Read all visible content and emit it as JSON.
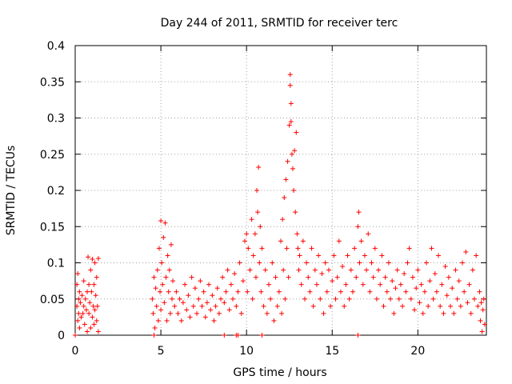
{
  "chart_data": {
    "type": "scatter",
    "title": "Day 244 of 2011, SRMTID for receiver terc",
    "xlabel": "GPS time / hours",
    "ylabel": "SRMTID / TECUs",
    "xlim": [
      0,
      24
    ],
    "ylim": [
      0,
      0.4
    ],
    "xticks": [
      0,
      5,
      10,
      15,
      20
    ],
    "yticks": [
      0,
      0.05,
      0.1,
      0.15,
      0.2,
      0.25,
      0.3,
      0.35,
      0.4
    ],
    "xtick_labels": [
      "0",
      "5",
      "10",
      "15",
      "20"
    ],
    "ytick_labels": [
      "0",
      "0.05",
      "0.1",
      "0.15",
      "0.2",
      "0.25",
      "0.3",
      "0.35",
      "0.4"
    ],
    "grid": true,
    "legend": "none",
    "marker": "+",
    "color": "#ff0000",
    "points": [
      [
        0.1,
        0.07
      ],
      [
        0.1,
        0.04
      ],
      [
        0.15,
        0.085
      ],
      [
        0.15,
        0.02
      ],
      [
        0.2,
        0.05
      ],
      [
        0.2,
        0.03
      ],
      [
        0.25,
        0.06
      ],
      [
        0.25,
        0.01
      ],
      [
        0.3,
        0.045
      ],
      [
        0.35,
        0.025
      ],
      [
        0.4,
        0.055
      ],
      [
        0.45,
        0.03
      ],
      [
        0.5,
        0.04
      ],
      [
        0.5,
        0.075
      ],
      [
        0.55,
        0.015
      ],
      [
        0.6,
        0.05
      ],
      [
        0.65,
        0.035
      ],
      [
        0.7,
        0.06
      ],
      [
        0.7,
        0.005
      ],
      [
        0.75,
        0.108
      ],
      [
        0.8,
        0.03
      ],
      [
        0.8,
        0.07
      ],
      [
        0.85,
        0.045
      ],
      [
        0.9,
        0.09
      ],
      [
        0.9,
        0.01
      ],
      [
        0.95,
        0.06
      ],
      [
        1.0,
        0.025
      ],
      [
        1.0,
        0.105
      ],
      [
        1.05,
        0.04
      ],
      [
        1.1,
        0.07
      ],
      [
        1.1,
        0.015
      ],
      [
        1.15,
        0.1
      ],
      [
        1.15,
        0.035
      ],
      [
        1.2,
        0.055
      ],
      [
        1.25,
        0.02
      ],
      [
        1.25,
        0.08
      ],
      [
        1.3,
        0.04
      ],
      [
        1.35,
        0.106
      ],
      [
        1.35,
        0.005
      ],
      [
        4.5,
        0.05
      ],
      [
        4.55,
        0.03
      ],
      [
        4.6,
        0.08
      ],
      [
        4.65,
        0.01
      ],
      [
        4.7,
        0.065
      ],
      [
        4.75,
        0.04
      ],
      [
        4.8,
        0.09
      ],
      [
        4.85,
        0.02
      ],
      [
        4.9,
        0.12
      ],
      [
        4.95,
        0.06
      ],
      [
        5.0,
        0.158
      ],
      [
        5.0,
        0.035
      ],
      [
        5.05,
        0.1
      ],
      [
        5.1,
        0.07
      ],
      [
        5.15,
        0.135
      ],
      [
        5.2,
        0.045
      ],
      [
        5.25,
        0.155
      ],
      [
        5.3,
        0.08
      ],
      [
        5.35,
        0.02
      ],
      [
        5.4,
        0.11
      ],
      [
        5.45,
        0.06
      ],
      [
        5.5,
        0.09
      ],
      [
        5.55,
        0.03
      ],
      [
        5.6,
        0.125
      ],
      [
        5.65,
        0.05
      ],
      [
        5.7,
        0.075
      ],
      [
        5.8,
        0.04
      ],
      [
        5.9,
        0.06
      ],
      [
        6.0,
        0.03
      ],
      [
        6.1,
        0.05
      ],
      [
        6.2,
        0.02
      ],
      [
        6.3,
        0.045
      ],
      [
        6.4,
        0.07
      ],
      [
        6.5,
        0.035
      ],
      [
        6.6,
        0.055
      ],
      [
        6.7,
        0.025
      ],
      [
        6.8,
        0.08
      ],
      [
        6.9,
        0.04
      ],
      [
        7.0,
        0.065
      ],
      [
        7.1,
        0.03
      ],
      [
        7.2,
        0.05
      ],
      [
        7.3,
        0.075
      ],
      [
        7.4,
        0.04
      ],
      [
        7.5,
        0.06
      ],
      [
        7.6,
        0.025
      ],
      [
        7.7,
        0.045
      ],
      [
        7.8,
        0.07
      ],
      [
        7.9,
        0.035
      ],
      [
        8.0,
        0.055
      ],
      [
        8.1,
        0.02
      ],
      [
        8.2,
        0.04
      ],
      [
        8.3,
        0.065
      ],
      [
        8.4,
        0.03
      ],
      [
        8.5,
        0.05
      ],
      [
        8.6,
        0.08
      ],
      [
        8.7,
        0.045
      ],
      [
        8.8,
        0.06
      ],
      [
        8.9,
        0.09
      ],
      [
        9.0,
        0.035
      ],
      [
        9.1,
        0.07
      ],
      [
        9.2,
        0.05
      ],
      [
        9.3,
        0.085
      ],
      [
        9.4,
        0.04
      ],
      [
        9.5,
        0.06
      ],
      [
        9.6,
        0.1
      ],
      [
        9.7,
        0.03
      ],
      [
        9.8,
        0.075
      ],
      [
        9.9,
        0.13
      ],
      [
        10.0,
        0.14
      ],
      [
        10.05,
        0.06
      ],
      [
        10.1,
        0.12
      ],
      [
        10.2,
        0.09
      ],
      [
        10.3,
        0.16
      ],
      [
        10.35,
        0.05
      ],
      [
        10.4,
        0.11
      ],
      [
        10.5,
        0.14
      ],
      [
        10.55,
        0.08
      ],
      [
        10.6,
        0.2
      ],
      [
        10.65,
        0.17
      ],
      [
        10.7,
        0.232
      ],
      [
        10.75,
        0.1
      ],
      [
        10.8,
        0.15
      ],
      [
        10.85,
        0.06
      ],
      [
        10.9,
        0.12
      ],
      [
        11.0,
        0.04
      ],
      [
        11.1,
        0.09
      ],
      [
        11.2,
        0.03
      ],
      [
        11.3,
        0.07
      ],
      [
        11.4,
        0.05
      ],
      [
        11.5,
        0.1
      ],
      [
        11.6,
        0.02
      ],
      [
        11.7,
        0.08
      ],
      [
        11.8,
        0.04
      ],
      [
        11.9,
        0.06
      ],
      [
        12.0,
        0.13
      ],
      [
        12.05,
        0.03
      ],
      [
        12.1,
        0.16
      ],
      [
        12.15,
        0.09
      ],
      [
        12.2,
        0.19
      ],
      [
        12.25,
        0.05
      ],
      [
        12.3,
        0.215
      ],
      [
        12.35,
        0.12
      ],
      [
        12.4,
        0.24
      ],
      [
        12.45,
        0.08
      ],
      [
        12.5,
        0.29
      ],
      [
        12.55,
        0.36
      ],
      [
        12.55,
        0.345
      ],
      [
        12.6,
        0.32
      ],
      [
        12.6,
        0.295
      ],
      [
        12.65,
        0.25
      ],
      [
        12.7,
        0.23
      ],
      [
        12.75,
        0.2
      ],
      [
        12.8,
        0.255
      ],
      [
        12.85,
        0.17
      ],
      [
        12.9,
        0.28
      ],
      [
        12.95,
        0.14
      ],
      [
        13.0,
        0.12
      ],
      [
        13.05,
        0.09
      ],
      [
        13.1,
        0.11
      ],
      [
        13.2,
        0.07
      ],
      [
        13.3,
        0.13
      ],
      [
        13.4,
        0.05
      ],
      [
        13.5,
        0.1
      ],
      [
        13.6,
        0.08
      ],
      [
        13.7,
        0.06
      ],
      [
        13.8,
        0.12
      ],
      [
        13.9,
        0.04
      ],
      [
        14.0,
        0.09
      ],
      [
        14.1,
        0.07
      ],
      [
        14.2,
        0.11
      ],
      [
        14.3,
        0.05
      ],
      [
        14.4,
        0.085
      ],
      [
        14.5,
        0.03
      ],
      [
        14.6,
        0.1
      ],
      [
        14.7,
        0.06
      ],
      [
        14.8,
        0.09
      ],
      [
        14.9,
        0.04
      ],
      [
        15.0,
        0.075
      ],
      [
        15.1,
        0.11
      ],
      [
        15.2,
        0.05
      ],
      [
        15.3,
        0.08
      ],
      [
        15.4,
        0.13
      ],
      [
        15.5,
        0.06
      ],
      [
        15.6,
        0.095
      ],
      [
        15.7,
        0.04
      ],
      [
        15.8,
        0.07
      ],
      [
        15.9,
        0.11
      ],
      [
        16.0,
        0.05
      ],
      [
        16.1,
        0.09
      ],
      [
        16.2,
        0.06
      ],
      [
        16.3,
        0.12
      ],
      [
        16.4,
        0.08
      ],
      [
        16.5,
        0.15
      ],
      [
        16.55,
        0.17
      ],
      [
        16.6,
        0.1
      ],
      [
        16.7,
        0.13
      ],
      [
        16.8,
        0.07
      ],
      [
        16.9,
        0.11
      ],
      [
        17.0,
        0.09
      ],
      [
        17.1,
        0.14
      ],
      [
        17.2,
        0.06
      ],
      [
        17.3,
        0.1
      ],
      [
        17.4,
        0.08
      ],
      [
        17.5,
        0.12
      ],
      [
        17.6,
        0.05
      ],
      [
        17.7,
        0.09
      ],
      [
        17.8,
        0.07
      ],
      [
        17.9,
        0.11
      ],
      [
        18.0,
        0.04
      ],
      [
        18.1,
        0.08
      ],
      [
        18.2,
        0.06
      ],
      [
        18.3,
        0.1
      ],
      [
        18.4,
        0.05
      ],
      [
        18.5,
        0.075
      ],
      [
        18.6,
        0.03
      ],
      [
        18.7,
        0.065
      ],
      [
        18.8,
        0.09
      ],
      [
        18.9,
        0.05
      ],
      [
        19.0,
        0.07
      ],
      [
        19.1,
        0.04
      ],
      [
        19.2,
        0.085
      ],
      [
        19.3,
        0.06
      ],
      [
        19.4,
        0.1
      ],
      [
        19.5,
        0.12
      ],
      [
        19.6,
        0.05
      ],
      [
        19.7,
        0.08
      ],
      [
        19.8,
        0.035
      ],
      [
        19.9,
        0.065
      ],
      [
        20.0,
        0.09
      ],
      [
        20.1,
        0.045
      ],
      [
        20.2,
        0.07
      ],
      [
        20.3,
        0.03
      ],
      [
        20.4,
        0.06
      ],
      [
        20.5,
        0.1
      ],
      [
        20.6,
        0.04
      ],
      [
        20.7,
        0.075
      ],
      [
        20.8,
        0.12
      ],
      [
        20.9,
        0.05
      ],
      [
        21.0,
        0.085
      ],
      [
        21.1,
        0.06
      ],
      [
        21.2,
        0.11
      ],
      [
        21.3,
        0.04
      ],
      [
        21.4,
        0.07
      ],
      [
        21.5,
        0.03
      ],
      [
        21.6,
        0.095
      ],
      [
        21.7,
        0.055
      ],
      [
        21.8,
        0.08
      ],
      [
        21.9,
        0.04
      ],
      [
        22.0,
        0.065
      ],
      [
        22.1,
        0.03
      ],
      [
        22.2,
        0.09
      ],
      [
        22.3,
        0.05
      ],
      [
        22.4,
        0.075
      ],
      [
        22.5,
        0.04
      ],
      [
        22.6,
        0.1
      ],
      [
        22.7,
        0.06
      ],
      [
        22.8,
        0.115
      ],
      [
        22.9,
        0.045
      ],
      [
        23.0,
        0.07
      ],
      [
        23.1,
        0.03
      ],
      [
        23.2,
        0.09
      ],
      [
        23.3,
        0.05
      ],
      [
        23.4,
        0.11
      ],
      [
        23.5,
        0.04
      ],
      [
        23.6,
        0.06
      ],
      [
        23.65,
        0.02
      ],
      [
        23.7,
        0.045
      ],
      [
        23.75,
        0.005
      ],
      [
        23.8,
        0.035
      ],
      [
        23.85,
        0.05
      ],
      [
        23.9,
        0.015
      ],
      [
        0.0,
        0.0
      ],
      [
        4.6,
        0.0
      ],
      [
        8.7,
        0.0
      ],
      [
        9.4,
        0.0
      ],
      [
        9.5,
        0.0
      ],
      [
        10.9,
        0.0
      ],
      [
        16.5,
        0.0
      ]
    ]
  }
}
